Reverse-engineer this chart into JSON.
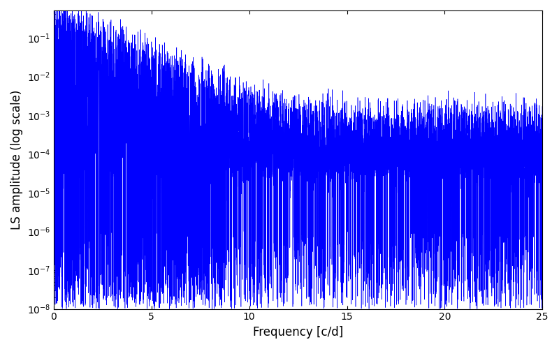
{
  "xlabel": "Frequency [c/d]",
  "ylabel": "LS amplitude (log scale)",
  "xlim": [
    0,
    25
  ],
  "ylim": [
    1e-08,
    0.5
  ],
  "line_color": "#0000ff",
  "line_width": 0.4,
  "yscale": "log",
  "figsize": [
    8.0,
    5.0
  ],
  "dpi": 100,
  "background_color": "#ffffff",
  "seed": 7
}
